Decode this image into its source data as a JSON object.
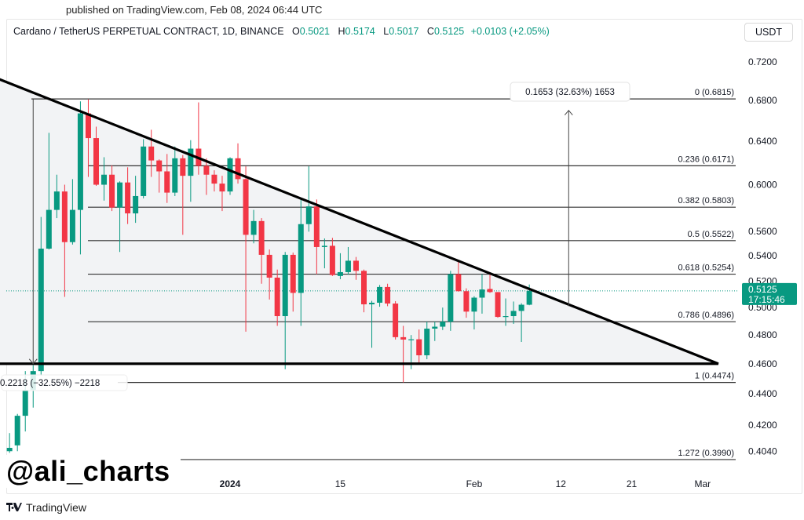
{
  "header": {
    "published": "published on TradingView.com, Feb 08, 2024 06:44 UTC",
    "symbol": "Cardano / TetherUS PERPETUAL CONTRACT, 1D, BINANCE",
    "o_label": "O",
    "o": "0.5021",
    "h_label": "H",
    "h": "0.5174",
    "l_label": "L",
    "l": "0.5017",
    "c_label": "C",
    "c": "0.5125",
    "change": "+0.0103 (+2.05%)",
    "currency_button": "USDT"
  },
  "watermark": "@ali_charts",
  "footer": {
    "brand": "TradingView"
  },
  "colors": {
    "up": "#089981",
    "down": "#f23645",
    "triangle": "#000000",
    "fib": "#333333",
    "triangle_fill": "#f2f3f5"
  },
  "chart_data": {
    "type": "candlestick",
    "scale": "log",
    "ylim": [
      0.396,
      0.735
    ],
    "grid": false,
    "y_ticks": [
      "0.7200",
      "0.6800",
      "0.6400",
      "0.6000",
      "0.5600",
      "0.5400",
      "0.5200",
      "0.5000",
      "0.4800",
      "0.4600",
      "0.4400",
      "0.4200",
      "0.4040"
    ],
    "x_ticks": [
      {
        "label": "2024",
        "date": "2024-01-01",
        "bold": true
      },
      {
        "label": "15",
        "date": "2024-01-15"
      },
      {
        "label": "Feb",
        "date": "2024-02-01"
      },
      {
        "label": "12",
        "date": "2024-02-12"
      },
      {
        "label": "21",
        "date": "2024-02-21"
      },
      {
        "label": "Mar",
        "date": "2024-03-01"
      }
    ],
    "last_price": {
      "value": "0.5125",
      "countdown": "17:15:46"
    },
    "candles_columns": [
      "date",
      "open",
      "high",
      "low",
      "close"
    ],
    "candles": [
      [
        "2023-12-04",
        0.404,
        0.415,
        0.403,
        0.406
      ],
      [
        "2023-12-05",
        0.4075,
        0.427,
        0.404,
        0.4258
      ],
      [
        "2023-12-06",
        0.4258,
        0.455,
        0.416,
        0.4425
      ],
      [
        "2023-12-07",
        0.4425,
        0.459,
        0.431,
        0.455
      ],
      [
        "2023-12-08",
        0.455,
        0.572,
        0.452,
        0.5457
      ],
      [
        "2023-12-09",
        0.5457,
        0.648,
        0.545,
        0.578
      ],
      [
        "2023-12-10",
        0.578,
        0.609,
        0.571,
        0.594
      ],
      [
        "2023-12-11",
        0.594,
        0.6,
        0.508,
        0.551
      ],
      [
        "2023-12-12",
        0.551,
        0.605,
        0.549,
        0.578
      ],
      [
        "2023-12-13",
        0.578,
        0.679,
        0.541,
        0.667
      ],
      [
        "2023-12-14",
        0.667,
        0.681,
        0.607,
        0.643
      ],
      [
        "2023-12-15",
        0.643,
        0.654,
        0.599,
        0.6
      ],
      [
        "2023-12-16",
        0.6,
        0.625,
        0.586,
        0.609
      ],
      [
        "2023-12-17",
        0.609,
        0.6175,
        0.577,
        0.58
      ],
      [
        "2023-12-18",
        0.58,
        0.603,
        0.543,
        0.602
      ],
      [
        "2023-12-19",
        0.602,
        0.6157,
        0.566,
        0.575
      ],
      [
        "2023-12-20",
        0.575,
        0.608,
        0.567,
        0.59
      ],
      [
        "2023-12-21",
        0.59,
        0.642,
        0.588,
        0.635
      ],
      [
        "2023-12-22",
        0.635,
        0.651,
        0.607,
        0.622
      ],
      [
        "2023-12-23",
        0.622,
        0.623,
        0.593,
        0.612
      ],
      [
        "2023-12-24",
        0.612,
        0.628,
        0.584,
        0.593
      ],
      [
        "2023-12-25",
        0.593,
        0.635,
        0.59,
        0.624
      ],
      [
        "2023-12-26",
        0.624,
        0.627,
        0.557,
        0.608
      ],
      [
        "2023-12-27",
        0.608,
        0.641,
        0.585,
        0.633
      ],
      [
        "2023-12-28",
        0.633,
        0.678,
        0.609,
        0.617
      ],
      [
        "2023-12-29",
        0.617,
        0.624,
        0.591,
        0.609
      ],
      [
        "2023-12-30",
        0.609,
        0.613,
        0.594,
        0.601
      ],
      [
        "2023-12-31",
        0.601,
        0.608,
        0.577,
        0.594
      ],
      [
        "2024-01-01",
        0.594,
        0.625,
        0.591,
        0.624
      ],
      [
        "2024-01-02",
        0.624,
        0.638,
        0.601,
        0.605
      ],
      [
        "2024-01-03",
        0.605,
        0.6166,
        0.4824,
        0.557
      ],
      [
        "2024-01-04",
        0.557,
        0.578,
        0.55,
        0.5685
      ],
      [
        "2024-01-05",
        0.5685,
        0.571,
        0.518,
        0.5407
      ],
      [
        "2024-01-06",
        0.5407,
        0.545,
        0.506,
        0.5227
      ],
      [
        "2024-01-07",
        0.5227,
        0.529,
        0.4866,
        0.4937
      ],
      [
        "2024-01-08",
        0.4937,
        0.543,
        0.4563,
        0.5407
      ],
      [
        "2024-01-09",
        0.5407,
        0.5425,
        0.497,
        0.511
      ],
      [
        "2024-01-10",
        0.511,
        0.587,
        0.4866,
        0.5659
      ],
      [
        "2024-01-11",
        0.5659,
        0.6166,
        0.5596,
        0.581
      ],
      [
        "2024-01-12",
        0.581,
        0.587,
        0.5254,
        0.547
      ],
      [
        "2024-01-13",
        0.547,
        0.554,
        0.53,
        0.548
      ],
      [
        "2024-01-14",
        0.548,
        0.5545,
        0.524,
        0.5247
      ],
      [
        "2024-01-15",
        0.524,
        0.542,
        0.5215,
        0.527
      ],
      [
        "2024-01-16",
        0.527,
        0.547,
        0.525,
        0.536
      ],
      [
        "2024-01-17",
        0.536,
        0.539,
        0.521,
        0.528
      ],
      [
        "2024-01-18",
        0.528,
        0.529,
        0.4965,
        0.5024
      ],
      [
        "2024-01-19",
        0.5024,
        0.505,
        0.471,
        0.5036
      ],
      [
        "2024-01-20",
        0.5036,
        0.517,
        0.5006,
        0.5155
      ],
      [
        "2024-01-21",
        0.5155,
        0.518,
        0.501,
        0.503
      ],
      [
        "2024-01-22",
        0.503,
        0.5048,
        0.4768,
        0.4785
      ],
      [
        "2024-01-23",
        0.4785,
        0.4866,
        0.4474,
        0.4768
      ],
      [
        "2024-01-24",
        0.4768,
        0.48,
        0.4563,
        0.477
      ],
      [
        "2024-01-25",
        0.477,
        0.484,
        0.4597,
        0.4658
      ],
      [
        "2024-01-26",
        0.4658,
        0.4896,
        0.4631,
        0.4846
      ],
      [
        "2024-01-27",
        0.4846,
        0.4896,
        0.4758,
        0.486
      ],
      [
        "2024-01-28",
        0.486,
        0.5,
        0.4836,
        0.4896
      ],
      [
        "2024-01-29",
        0.4896,
        0.528,
        0.483,
        0.5254
      ],
      [
        "2024-01-30",
        0.5254,
        0.5365,
        0.512,
        0.5123
      ],
      [
        "2024-01-31",
        0.5123,
        0.5145,
        0.4925,
        0.497
      ],
      [
        "2024-02-01",
        0.497,
        0.5085,
        0.484,
        0.5074
      ],
      [
        "2024-02-02",
        0.5074,
        0.5254,
        0.4955,
        0.5136
      ],
      [
        "2024-02-03",
        0.514,
        0.5254,
        0.511,
        0.5116
      ],
      [
        "2024-02-04",
        0.5116,
        0.5116,
        0.4925,
        0.4931
      ],
      [
        "2024-02-05",
        0.4931,
        0.5068,
        0.4866,
        0.4937
      ],
      [
        "2024-02-06",
        0.4937,
        0.5045,
        0.488,
        0.4975
      ],
      [
        "2024-02-07",
        0.4975,
        0.5032,
        0.4751,
        0.5021
      ],
      [
        "2024-02-08",
        0.5021,
        0.5174,
        0.5017,
        0.5125
      ]
    ],
    "fib_levels": [
      {
        "label": "0 (0.6815)",
        "price": 0.6815
      },
      {
        "label": "0.236 (0.6171)",
        "price": 0.6171
      },
      {
        "label": "0.382 (0.5803)",
        "price": 0.5803
      },
      {
        "label": "0.5 (0.5522)",
        "price": 0.5522
      },
      {
        "label": "0.618 (0.5254)",
        "price": 0.5254
      },
      {
        "label": "0.786 (0.4896)",
        "price": 0.4896
      },
      {
        "label": "1 (0.4474)",
        "price": 0.4474
      },
      {
        "label": "1.272 (0.3990)",
        "price": 0.399
      }
    ],
    "triangle": {
      "points": [
        [
          "2023-11-30",
          0.7105
        ],
        [
          "2023-11-30",
          0.46
        ],
        [
          "2024-03-03",
          0.46
        ]
      ]
    },
    "annotations": [
      {
        "label": "0.2218 (−32.55%) −2218",
        "from": 0.6815,
        "to": 0.46,
        "date": "2023-12-07"
      },
      {
        "label": "0.1653 (32.63%) 1653",
        "from": 0.501,
        "to": 0.67,
        "date": "2024-02-13"
      }
    ]
  }
}
